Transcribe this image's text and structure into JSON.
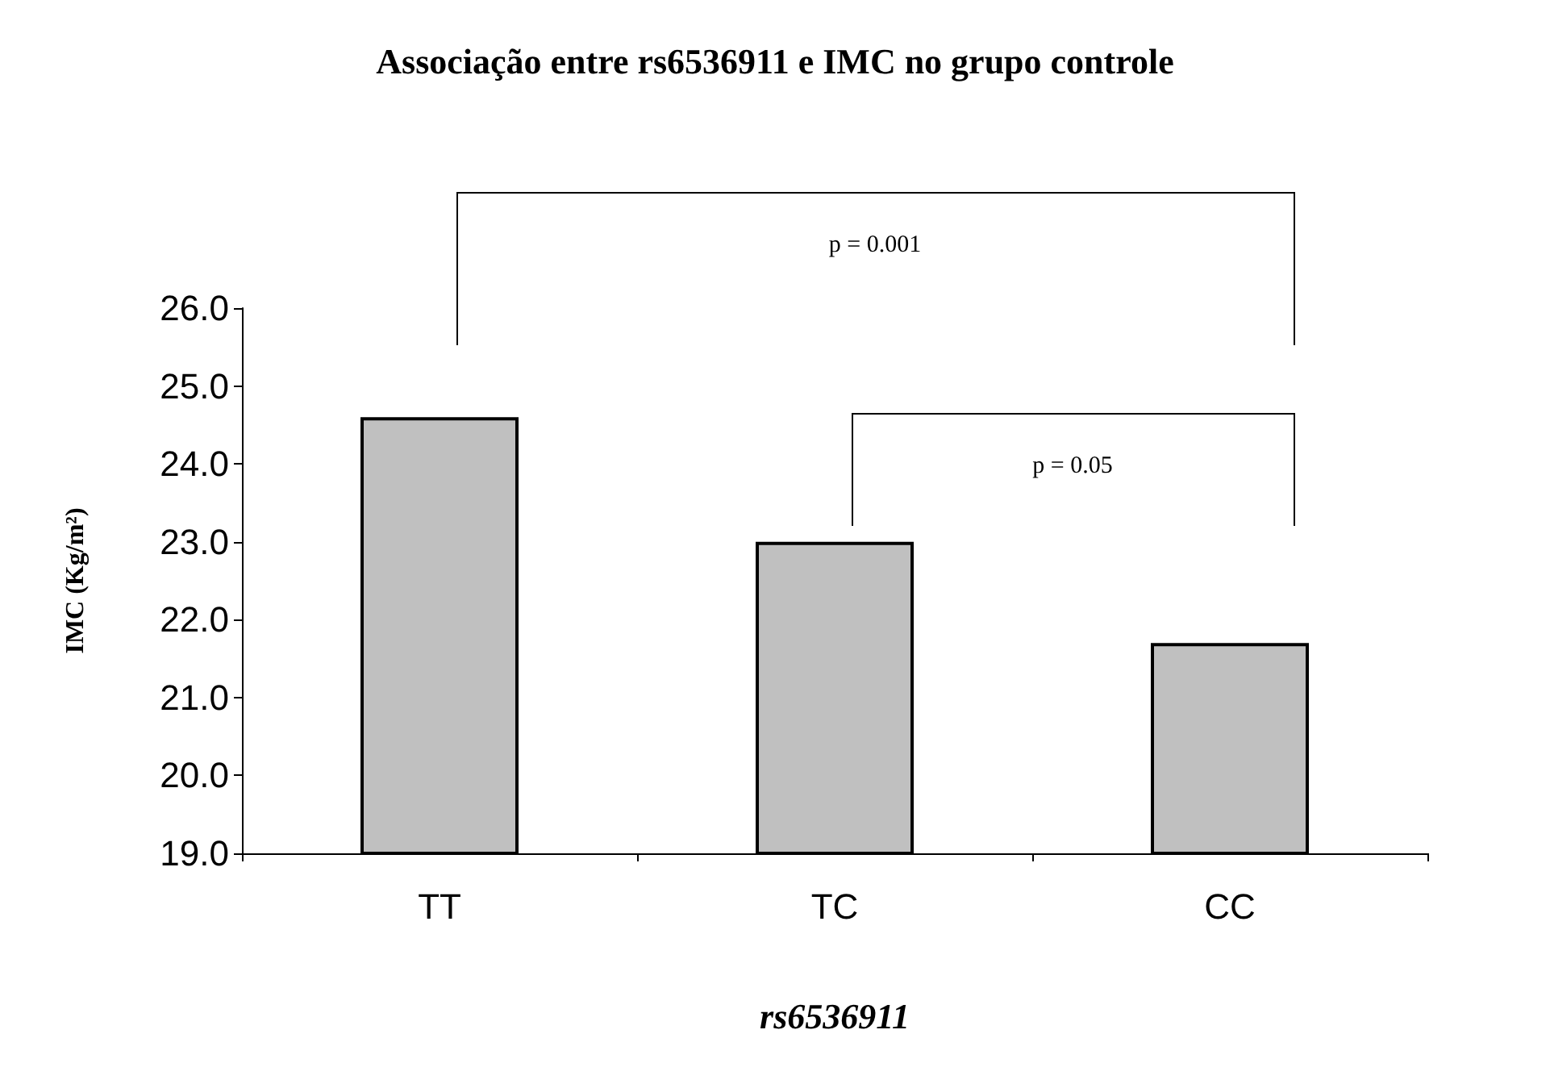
{
  "chart_data": {
    "type": "bar",
    "title": "Associação entre rs6536911 e IMC no grupo controle",
    "xlabel": "rs6536911",
    "ylabel": "IMC (Kg/m²)",
    "categories": [
      "TT",
      "TC",
      "CC"
    ],
    "values": [
      24.6,
      23.0,
      21.7
    ],
    "color": "#c0c0c0",
    "ylim": [
      19,
      26
    ],
    "yticks": [
      {
        "value": 19,
        "label": "19.0"
      },
      {
        "value": 20,
        "label": "20.0"
      },
      {
        "value": 21,
        "label": "21.0"
      },
      {
        "value": 22,
        "label": "22.0"
      },
      {
        "value": 23,
        "label": "23.0"
      },
      {
        "value": 24,
        "label": "24.0"
      },
      {
        "value": 25,
        "label": "25.0"
      },
      {
        "value": 26,
        "label": "26.0"
      }
    ],
    "annotations": [
      "p = 0.001",
      "p = 0.05"
    ],
    "grid": false
  }
}
